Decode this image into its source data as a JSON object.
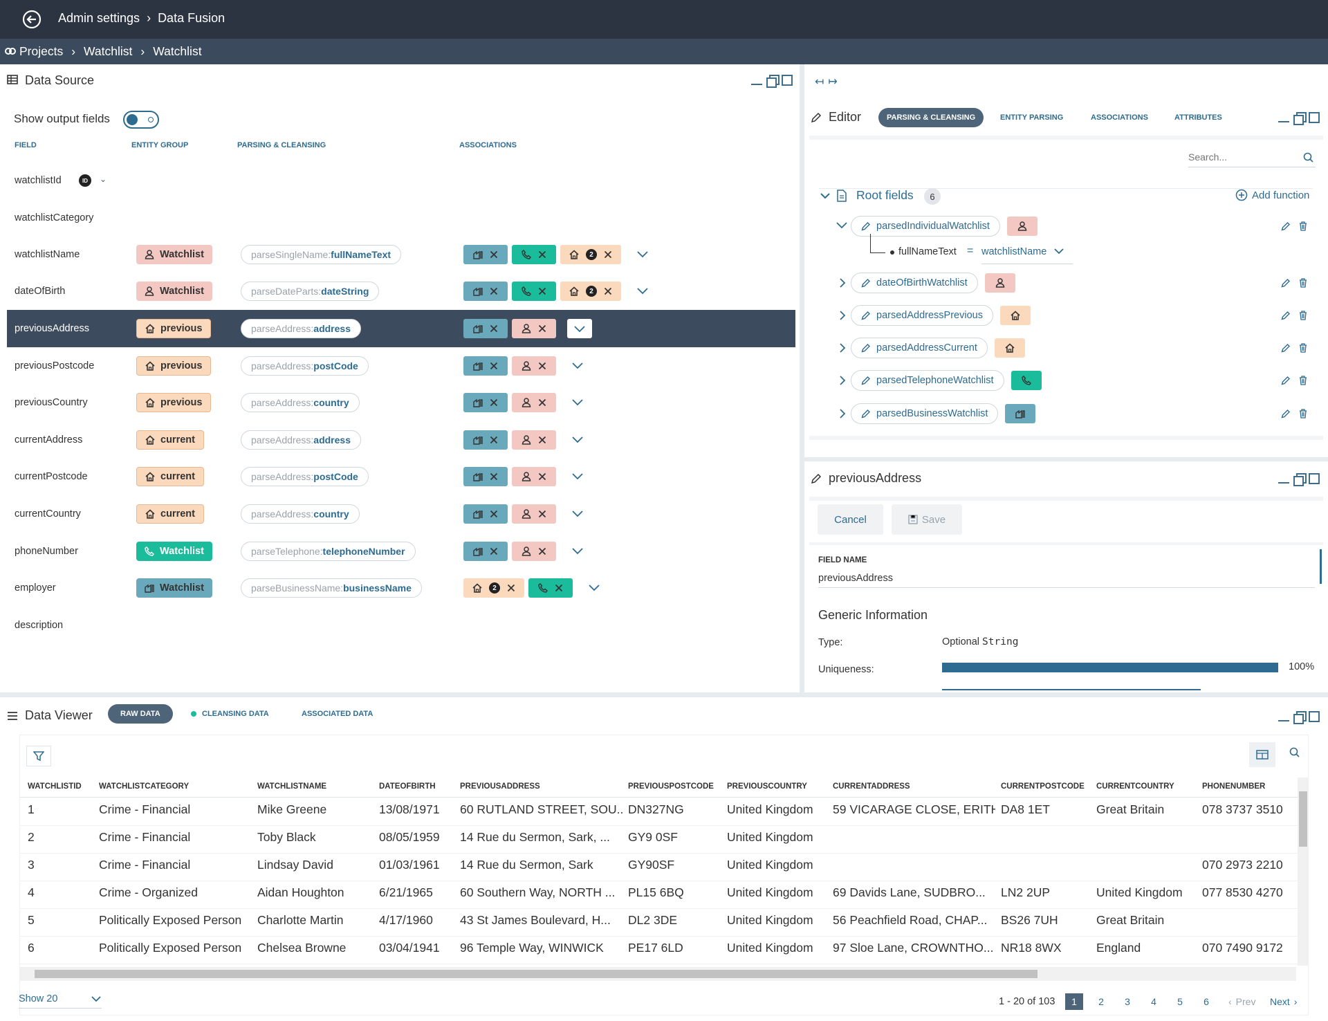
{
  "topbar": {
    "crumbs": [
      "Admin settings",
      "Data Fusion"
    ]
  },
  "crumbbar": {
    "crumbs": [
      "Projects",
      "Watchlist",
      "Watchlist"
    ]
  },
  "datasource": {
    "title": "Data Source",
    "show_output_label": "Show output fields",
    "columns": [
      "FIELD",
      "ENTITY GROUP",
      "PARSING & CLEANSING",
      "ASSOCIATIONS"
    ],
    "rows": [
      {
        "field": "watchlistId",
        "badge": "ID"
      },
      {
        "field": "watchlistCategory"
      },
      {
        "field": "watchlistName",
        "group": "Watchlist",
        "group_color": "pink",
        "group_icon": "person-icon",
        "fn": "parseSingleName:",
        "prop": "fullNameText",
        "tags": [
          "blue",
          "green",
          "peach2"
        ]
      },
      {
        "field": "dateOfBirth",
        "group": "Watchlist",
        "group_color": "pink",
        "group_icon": "person-icon",
        "fn": "parseDateParts:",
        "prop": "dateString",
        "tags": [
          "blue",
          "green",
          "peach2"
        ]
      },
      {
        "field": "previousAddress",
        "group": "previous",
        "group_color": "peach",
        "group_icon": "home-icon",
        "fn": "parseAddress:",
        "prop": "address",
        "tags": [
          "blue",
          "pink"
        ],
        "selected": true
      },
      {
        "field": "previousPostcode",
        "group": "previous",
        "group_color": "peach",
        "group_icon": "home-icon",
        "fn": "parseAddress:",
        "prop": "postCode",
        "tags": [
          "blue",
          "pink"
        ]
      },
      {
        "field": "previousCountry",
        "group": "previous",
        "group_color": "peach",
        "group_icon": "home-icon",
        "fn": "parseAddress:",
        "prop": "country",
        "tags": [
          "blue",
          "pink"
        ]
      },
      {
        "field": "currentAddress",
        "group": "current",
        "group_color": "peach",
        "group_icon": "home-icon",
        "fn": "parseAddress:",
        "prop": "address",
        "tags": [
          "blue",
          "pink"
        ]
      },
      {
        "field": "currentPostcode",
        "group": "current",
        "group_color": "peach",
        "group_icon": "home-icon",
        "fn": "parseAddress:",
        "prop": "postCode",
        "tags": [
          "blue",
          "pink"
        ]
      },
      {
        "field": "currentCountry",
        "group": "current",
        "group_color": "peach",
        "group_icon": "home-icon",
        "fn": "parseAddress:",
        "prop": "country",
        "tags": [
          "blue",
          "pink"
        ]
      },
      {
        "field": "phoneNumber",
        "group": "Watchlist",
        "group_color": "green",
        "group_icon": "phone-icon",
        "fn": "parseTelephone:",
        "prop": "telephoneNumber",
        "tags": [
          "blue",
          "pink"
        ]
      },
      {
        "field": "employer",
        "group": "Watchlist",
        "group_color": "blue",
        "group_icon": "building-icon",
        "fn": "parseBusinessName:",
        "prop": "businessName",
        "tags": [
          "peach2",
          "green"
        ]
      },
      {
        "field": "description"
      }
    ],
    "association_count": "2"
  },
  "editor": {
    "title": "Editor",
    "tabs": [
      "PARSING & CLEANSING",
      "ENTITY PARSING",
      "ASSOCIATIONS",
      "ATTRIBUTES"
    ],
    "search_placeholder": "Search...",
    "root_label": "Root fields",
    "root_count": "6",
    "add_function": "Add function",
    "items": [
      {
        "name": "parsedIndividualWatchlist",
        "chip": "pink",
        "icon": "person-icon"
      },
      {
        "name": "dateOfBirthWatchlist",
        "chip": "pink",
        "icon": "person-icon"
      },
      {
        "name": "parsedAddressPrevious",
        "chip": "peach",
        "icon": "home-icon"
      },
      {
        "name": "parsedAddressCurrent",
        "chip": "peach",
        "icon": "home-icon"
      },
      {
        "name": "parsedTelephoneWatchlist",
        "chip": "green",
        "icon": "phone-icon"
      },
      {
        "name": "parsedBusinessWatchlist",
        "chip": "blue",
        "icon": "building-icon"
      }
    ],
    "mapping": {
      "left": "fullNameText",
      "eq": "=",
      "right": "watchlistName"
    }
  },
  "detail": {
    "title": "previousAddress",
    "cancel": "Cancel",
    "save": "Save",
    "field_name_label": "FIELD NAME",
    "field_name_value": "previousAddress",
    "generic_info": "Generic Information",
    "type_label": "Type:",
    "type_value": "Optional ",
    "type_code": "String",
    "uniq_label": "Uniqueness:",
    "uniq_value": "100%",
    "uniq_fraction": 1.0
  },
  "viewer": {
    "title": "Data Viewer",
    "tabs": [
      "RAW DATA",
      "CLEANSING DATA",
      "ASSOCIATED DATA"
    ],
    "columns": [
      "WATCHLISTID",
      "WATCHLISTCATEGORY",
      "WATCHLISTNAME",
      "DATEOFBIRTH",
      "PREVIOUSADDRESS",
      "PREVIOUSPOSTCODE",
      "PREVIOUSCOUNTRY",
      "CURRENTADDRESS",
      "CURRENTPOSTCODE",
      "CURRENTCOUNTRY",
      "PHONENUMBER"
    ],
    "rows": [
      [
        "1",
        "Crime - Financial",
        "Mike Greene",
        "13/08/1971",
        "60 RUTLAND STREET, SOU...",
        "DN327NG",
        "United Kingdom",
        "59 VICARAGE CLOSE, ERITH",
        "DA8 1ET",
        "Great Britain",
        "078 3737 3510"
      ],
      [
        "2",
        "Crime - Financial",
        "Toby Black",
        "08/05/1959",
        "14 Rue du Sermon, Sark, ...",
        "GY9 0SF",
        "United Kingdom",
        "",
        "",
        "",
        ""
      ],
      [
        "3",
        "Crime - Financial",
        "Lindsay David",
        "01/03/1961",
        "14 Rue du Sermon, Sark",
        "GY90SF",
        "United Kingdom",
        "",
        "",
        "",
        "070 2973 2210"
      ],
      [
        "4",
        "Crime - Organized",
        "Aidan Houghton",
        "6/21/1965",
        "60 Southern Way, NORTH ...",
        "PL15 6BQ",
        "United Kingdom",
        "69 Davids Lane, SUDBRO...",
        "LN2 2UP",
        "United Kingdom",
        "077 8530 4270"
      ],
      [
        "5",
        "Politically Exposed Person",
        "Charlotte Martin",
        "4/17/1960",
        "43 St James Boulevard, H...",
        "DL2 3DE",
        "United Kingdom",
        "56 Peachfield Road, CHAP...",
        "BS26 7UH",
        "Great Britain",
        ""
      ],
      [
        "6",
        "Politically Exposed Person",
        "Chelsea Browne",
        "03/04/1941",
        "96 Temple Way, WINWICK",
        "PE17 6LD",
        "United Kingdom",
        "97 Sloe Lane, CROWNTHO...",
        "NR18 8WX",
        "England",
        "070 7490 9172"
      ]
    ],
    "show": "Show 20",
    "range": "1 - 20 of 103",
    "pages": [
      "1",
      "2",
      "3",
      "4",
      "5",
      "6"
    ],
    "prev": "Prev",
    "next": "Next"
  }
}
